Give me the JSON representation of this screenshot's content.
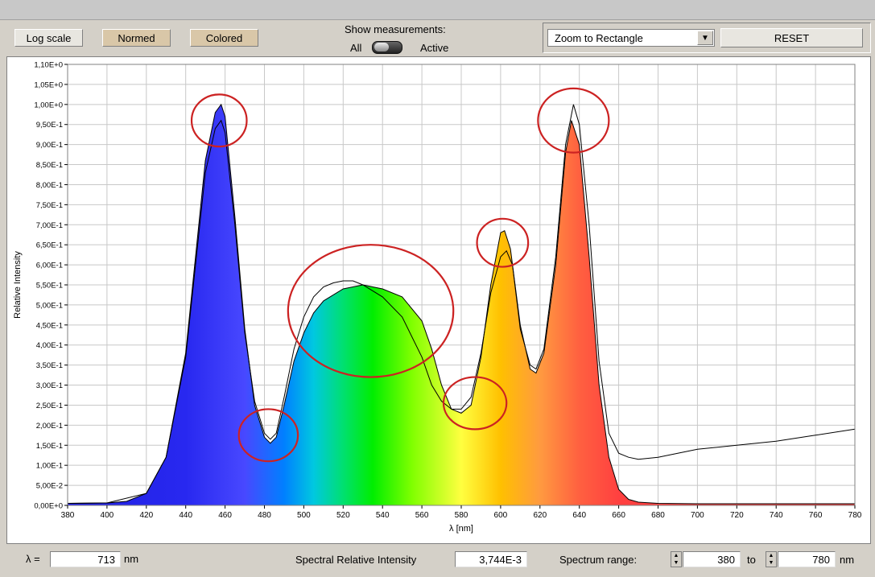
{
  "toolbar": {
    "log_scale_label": "Log scale",
    "normed_label": "Normed",
    "colored_label": "Colored",
    "show_measurements_label": "Show measurements:",
    "all_label": "All",
    "active_label": "Active",
    "zoom_mode_value": "Zoom to Rectangle",
    "reset_label": "RESET"
  },
  "footer": {
    "lambda_label": "λ =",
    "lambda_value": "713",
    "lambda_unit": "nm",
    "sri_label": "Spectral Relative Intensity",
    "sri_value": "3,744E-3",
    "spectrum_range_label": "Spectrum range:",
    "range_from": "380",
    "range_to_label": "to",
    "range_to": "780",
    "range_unit": "nm"
  },
  "colors": {
    "reference_line": "#000000",
    "highlight_circle": "#cc2222",
    "grid": "#c8c8c8"
  },
  "chart_data": {
    "type": "area",
    "xlabel": "λ [nm]",
    "ylabel": "Relative Intensity",
    "xlim": [
      380,
      780
    ],
    "ylim": [
      0,
      1.1
    ],
    "x_ticks": [
      380,
      400,
      420,
      440,
      460,
      480,
      500,
      520,
      540,
      560,
      580,
      600,
      620,
      640,
      660,
      680,
      700,
      720,
      740,
      760,
      780
    ],
    "y_ticks": [
      0,
      0.05,
      0.1,
      0.15,
      0.2,
      0.25,
      0.3,
      0.35,
      0.4,
      0.45,
      0.5,
      0.55,
      0.6,
      0.65,
      0.7,
      0.75,
      0.8,
      0.85,
      0.9,
      0.95,
      1.0,
      1.05,
      1.1
    ],
    "y_tick_labels": [
      "0,00E+0",
      "5,00E-2",
      "1,00E-1",
      "1,50E-1",
      "2,00E-1",
      "2,50E-1",
      "3,00E-1",
      "3,50E-1",
      "4,00E-1",
      "4,50E-1",
      "5,00E-1",
      "5,50E-1",
      "6,00E-1",
      "6,50E-1",
      "7,00E-1",
      "7,50E-1",
      "8,00E-1",
      "8,50E-1",
      "9,00E-1",
      "9,50E-1",
      "1,00E+0",
      "1,05E+0",
      "1,10E+0"
    ],
    "grid": true,
    "series": [
      {
        "fill": "spectrum-colored",
        "x": [
          380,
          400,
          410,
          420,
          430,
          440,
          445,
          450,
          455,
          458,
          460,
          465,
          470,
          475,
          480,
          483,
          486,
          490,
          495,
          500,
          505,
          510,
          520,
          530,
          535,
          540,
          550,
          560,
          565,
          570,
          575,
          580,
          585,
          590,
          595,
          600,
          602,
          605,
          610,
          615,
          618,
          622,
          628,
          633,
          636,
          640,
          645,
          650,
          655,
          660,
          665,
          670,
          680,
          700,
          720,
          740,
          760,
          780
        ],
        "y": [
          0.005,
          0.006,
          0.01,
          0.03,
          0.12,
          0.38,
          0.62,
          0.86,
          0.98,
          1.0,
          0.97,
          0.72,
          0.44,
          0.25,
          0.17,
          0.155,
          0.17,
          0.25,
          0.36,
          0.43,
          0.48,
          0.51,
          0.54,
          0.55,
          0.545,
          0.54,
          0.52,
          0.46,
          0.39,
          0.3,
          0.24,
          0.23,
          0.25,
          0.37,
          0.55,
          0.68,
          0.685,
          0.64,
          0.45,
          0.34,
          0.33,
          0.38,
          0.6,
          0.88,
          0.96,
          0.9,
          0.62,
          0.3,
          0.12,
          0.04,
          0.015,
          0.008,
          0.005,
          0.004,
          0.004,
          0.004,
          0.004,
          0.004
        ]
      },
      {
        "line": "reference",
        "x": [
          380,
          400,
          420,
          430,
          440,
          445,
          450,
          455,
          458,
          460,
          465,
          470,
          475,
          480,
          483,
          486,
          490,
          495,
          500,
          505,
          510,
          515,
          520,
          525,
          530,
          540,
          550,
          560,
          565,
          570,
          575,
          580,
          585,
          590,
          595,
          600,
          603,
          606,
          610,
          615,
          618,
          622,
          628,
          633,
          637,
          640,
          645,
          650,
          655,
          660,
          665,
          670,
          680,
          700,
          720,
          740,
          760,
          780
        ],
        "y": [
          0.005,
          0.006,
          0.03,
          0.12,
          0.37,
          0.6,
          0.83,
          0.94,
          0.96,
          0.93,
          0.7,
          0.43,
          0.26,
          0.18,
          0.165,
          0.18,
          0.27,
          0.39,
          0.47,
          0.52,
          0.545,
          0.555,
          0.56,
          0.56,
          0.55,
          0.52,
          0.47,
          0.37,
          0.3,
          0.26,
          0.24,
          0.24,
          0.27,
          0.38,
          0.53,
          0.62,
          0.635,
          0.6,
          0.44,
          0.35,
          0.34,
          0.39,
          0.62,
          0.9,
          1.0,
          0.95,
          0.7,
          0.36,
          0.18,
          0.13,
          0.12,
          0.115,
          0.12,
          0.14,
          0.15,
          0.16,
          0.175,
          0.19
        ]
      }
    ],
    "annotations": [
      {
        "type": "circle",
        "cx": 457,
        "cy": 0.96,
        "rx": 14,
        "ry": 0.065
      },
      {
        "type": "circle",
        "cx": 482,
        "cy": 0.175,
        "rx": 15,
        "ry": 0.065
      },
      {
        "type": "circle",
        "cx": 534,
        "cy": 0.485,
        "rx": 42,
        "ry": 0.165
      },
      {
        "type": "circle",
        "cx": 587,
        "cy": 0.255,
        "rx": 16,
        "ry": 0.065
      },
      {
        "type": "circle",
        "cx": 601,
        "cy": 0.655,
        "rx": 13,
        "ry": 0.06
      },
      {
        "type": "circle",
        "cx": 637,
        "cy": 0.96,
        "rx": 18,
        "ry": 0.08
      }
    ]
  }
}
